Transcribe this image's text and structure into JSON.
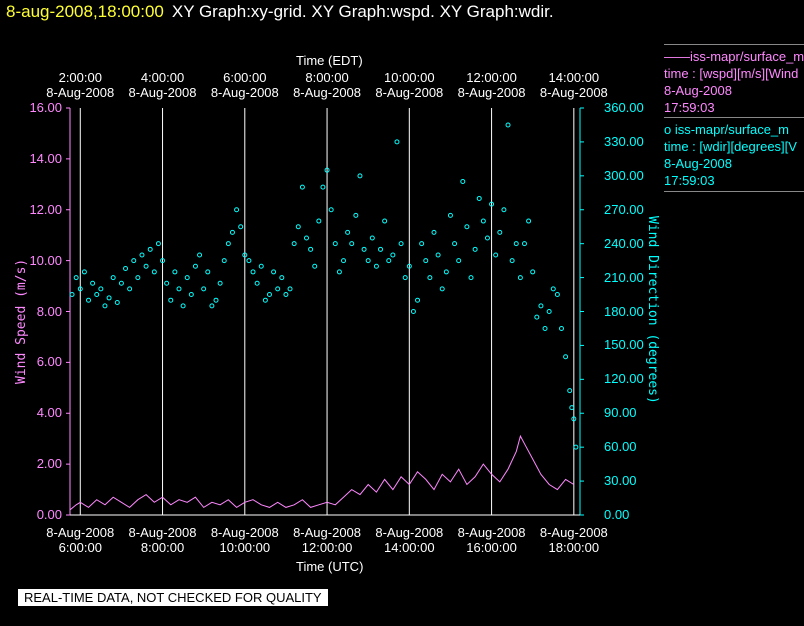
{
  "header": {
    "timestamp": "8-aug-2008,18:00:00",
    "graphs": "XY Graph:xy-grid.  XY Graph:wspd.  XY Graph:wdir."
  },
  "top_axis": {
    "title": "Time (EDT)",
    "ticks": [
      {
        "time": "2:00:00",
        "date": "8-Aug-2008"
      },
      {
        "time": "4:00:00",
        "date": "8-Aug-2008"
      },
      {
        "time": "6:00:00",
        "date": "8-Aug-2008"
      },
      {
        "time": "8:00:00",
        "date": "8-Aug-2008"
      },
      {
        "time": "10:00:00",
        "date": "8-Aug-2008"
      },
      {
        "time": "12:00:00",
        "date": "8-Aug-2008"
      },
      {
        "time": "14:00:00",
        "date": "8-Aug-2008"
      }
    ]
  },
  "bottom_axis": {
    "title": "Time (UTC)",
    "ticks": [
      {
        "date": "8-Aug-2008",
        "time": "6:00:00"
      },
      {
        "date": "8-Aug-2008",
        "time": "8:00:00"
      },
      {
        "date": "8-Aug-2008",
        "time": "10:00:00"
      },
      {
        "date": "8-Aug-2008",
        "time": "12:00:00"
      },
      {
        "date": "8-Aug-2008",
        "time": "14:00:00"
      },
      {
        "date": "8-Aug-2008",
        "time": "16:00:00"
      },
      {
        "date": "8-Aug-2008",
        "time": "18:00:00"
      }
    ]
  },
  "left_axis": {
    "title": "Wind Speed (m/s)",
    "ticks": [
      "0.00",
      "2.00",
      "4.00",
      "6.00",
      "8.00",
      "10.00",
      "12.00",
      "14.00",
      "16.00"
    ],
    "color": "#ff88ff"
  },
  "right_axis": {
    "title": "Wind Direction (degrees)",
    "ticks": [
      "0.00",
      "30.00",
      "60.00",
      "90.00",
      "120.00",
      "150.00",
      "180.00",
      "210.00",
      "240.00",
      "270.00",
      "300.00",
      "330.00",
      "360.00"
    ],
    "color": "#00ffff"
  },
  "legend": {
    "wspd": {
      "line1": "——iss-mapr/surface_m",
      "line2": "time : [wspd][m/s][Wind",
      "line3": "8-Aug-2008",
      "line4": "17:59:03"
    },
    "wdir": {
      "line1": "o  iss-mapr/surface_m",
      "line2": "time : [wdir][degrees][V",
      "line3": "8-Aug-2008",
      "line4": "17:59:03"
    }
  },
  "disclaimer": "REAL-TIME DATA, NOT CHECKED FOR QUALITY",
  "colors": {
    "wspd": "#ff88ff",
    "wdir": "#00ffff",
    "grid": "#ffffff",
    "timestamp": "#ffff33"
  },
  "chart_data": {
    "type": "line",
    "x_units": "hours UTC, 8-Aug-2008",
    "xlim": [
      5.75,
      18.15
    ],
    "series": [
      {
        "axis": "left",
        "style": "line",
        "ylim": [
          0,
          16
        ],
        "points": [
          [
            5.75,
            0.2
          ],
          [
            5.9,
            0.4
          ],
          [
            6.0,
            0.5
          ],
          [
            6.2,
            0.3
          ],
          [
            6.4,
            0.6
          ],
          [
            6.6,
            0.4
          ],
          [
            6.8,
            0.7
          ],
          [
            7.0,
            0.5
          ],
          [
            7.2,
            0.3
          ],
          [
            7.4,
            0.6
          ],
          [
            7.6,
            0.8
          ],
          [
            7.8,
            0.5
          ],
          [
            8.0,
            0.7
          ],
          [
            8.2,
            0.4
          ],
          [
            8.4,
            0.6
          ],
          [
            8.6,
            0.5
          ],
          [
            8.8,
            0.7
          ],
          [
            9.0,
            0.3
          ],
          [
            9.2,
            0.5
          ],
          [
            9.4,
            0.4
          ],
          [
            9.6,
            0.6
          ],
          [
            9.8,
            0.3
          ],
          [
            10.0,
            0.5
          ],
          [
            10.2,
            0.6
          ],
          [
            10.4,
            0.4
          ],
          [
            10.6,
            0.3
          ],
          [
            10.8,
            0.5
          ],
          [
            11.0,
            0.3
          ],
          [
            11.2,
            0.4
          ],
          [
            11.4,
            0.6
          ],
          [
            11.6,
            0.3
          ],
          [
            11.8,
            0.4
          ],
          [
            12.0,
            0.5
          ],
          [
            12.2,
            0.4
          ],
          [
            12.4,
            0.7
          ],
          [
            12.6,
            1.0
          ],
          [
            12.8,
            0.8
          ],
          [
            13.0,
            1.2
          ],
          [
            13.2,
            0.9
          ],
          [
            13.4,
            1.4
          ],
          [
            13.6,
            1.0
          ],
          [
            13.8,
            1.5
          ],
          [
            14.0,
            1.2
          ],
          [
            14.2,
            1.7
          ],
          [
            14.4,
            1.4
          ],
          [
            14.6,
            1.0
          ],
          [
            14.8,
            1.6
          ],
          [
            15.0,
            1.3
          ],
          [
            15.2,
            1.8
          ],
          [
            15.4,
            1.2
          ],
          [
            15.6,
            1.5
          ],
          [
            15.8,
            2.0
          ],
          [
            16.0,
            1.6
          ],
          [
            16.2,
            1.3
          ],
          [
            16.4,
            1.8
          ],
          [
            16.6,
            2.5
          ],
          [
            16.7,
            3.1
          ],
          [
            16.8,
            2.8
          ],
          [
            17.0,
            2.2
          ],
          [
            17.2,
            1.6
          ],
          [
            17.4,
            1.2
          ],
          [
            17.6,
            1.0
          ],
          [
            17.8,
            1.4
          ],
          [
            18.0,
            1.2
          ]
        ]
      },
      {
        "axis": "right",
        "style": "markers",
        "ylim": [
          0,
          360
        ],
        "points": [
          [
            5.8,
            195
          ],
          [
            5.9,
            210
          ],
          [
            6.0,
            200
          ],
          [
            6.1,
            215
          ],
          [
            6.2,
            190
          ],
          [
            6.3,
            205
          ],
          [
            6.4,
            195
          ],
          [
            6.5,
            200
          ],
          [
            6.6,
            185
          ],
          [
            6.7,
            192
          ],
          [
            6.8,
            210
          ],
          [
            6.9,
            188
          ],
          [
            7.0,
            205
          ],
          [
            7.1,
            218
          ],
          [
            7.2,
            200
          ],
          [
            7.3,
            225
          ],
          [
            7.4,
            210
          ],
          [
            7.5,
            230
          ],
          [
            7.6,
            220
          ],
          [
            7.7,
            235
          ],
          [
            7.8,
            215
          ],
          [
            7.9,
            240
          ],
          [
            8.0,
            225
          ],
          [
            8.1,
            205
          ],
          [
            8.2,
            190
          ],
          [
            8.3,
            215
          ],
          [
            8.4,
            200
          ],
          [
            8.5,
            185
          ],
          [
            8.6,
            210
          ],
          [
            8.7,
            195
          ],
          [
            8.8,
            220
          ],
          [
            8.9,
            230
          ],
          [
            9.0,
            200
          ],
          [
            9.1,
            215
          ],
          [
            9.2,
            185
          ],
          [
            9.3,
            190
          ],
          [
            9.4,
            205
          ],
          [
            9.5,
            225
          ],
          [
            9.6,
            240
          ],
          [
            9.7,
            250
          ],
          [
            9.8,
            270
          ],
          [
            9.9,
            255
          ],
          [
            10.0,
            230
          ],
          [
            10.1,
            225
          ],
          [
            10.2,
            215
          ],
          [
            10.3,
            205
          ],
          [
            10.4,
            220
          ],
          [
            10.5,
            190
          ],
          [
            10.6,
            195
          ],
          [
            10.7,
            215
          ],
          [
            10.8,
            200
          ],
          [
            10.9,
            210
          ],
          [
            11.0,
            195
          ],
          [
            11.1,
            200
          ],
          [
            11.2,
            240
          ],
          [
            11.3,
            255
          ],
          [
            11.4,
            290
          ],
          [
            11.5,
            245
          ],
          [
            11.6,
            235
          ],
          [
            11.7,
            220
          ],
          [
            11.8,
            260
          ],
          [
            11.9,
            290
          ],
          [
            12.0,
            305
          ],
          [
            12.1,
            270
          ],
          [
            12.2,
            240
          ],
          [
            12.3,
            215
          ],
          [
            12.4,
            225
          ],
          [
            12.5,
            250
          ],
          [
            12.6,
            240
          ],
          [
            12.7,
            265
          ],
          [
            12.8,
            300
          ],
          [
            12.9,
            235
          ],
          [
            13.0,
            225
          ],
          [
            13.1,
            245
          ],
          [
            13.2,
            220
          ],
          [
            13.3,
            235
          ],
          [
            13.4,
            260
          ],
          [
            13.5,
            225
          ],
          [
            13.6,
            230
          ],
          [
            13.7,
            330
          ],
          [
            13.8,
            240
          ],
          [
            13.9,
            210
          ],
          [
            14.0,
            220
          ],
          [
            14.1,
            180
          ],
          [
            14.2,
            190
          ],
          [
            14.3,
            240
          ],
          [
            14.4,
            225
          ],
          [
            14.5,
            210
          ],
          [
            14.6,
            250
          ],
          [
            14.7,
            230
          ],
          [
            14.8,
            200
          ],
          [
            14.9,
            215
          ],
          [
            15.0,
            265
          ],
          [
            15.1,
            240
          ],
          [
            15.2,
            225
          ],
          [
            15.3,
            295
          ],
          [
            15.4,
            255
          ],
          [
            15.5,
            210
          ],
          [
            15.6,
            235
          ],
          [
            15.7,
            280
          ],
          [
            15.8,
            260
          ],
          [
            15.9,
            245
          ],
          [
            16.0,
            275
          ],
          [
            16.1,
            230
          ],
          [
            16.2,
            250
          ],
          [
            16.3,
            270
          ],
          [
            16.4,
            345
          ],
          [
            16.5,
            225
          ],
          [
            16.6,
            240
          ],
          [
            16.7,
            210
          ],
          [
            16.8,
            240
          ],
          [
            16.9,
            260
          ],
          [
            17.0,
            215
          ],
          [
            17.1,
            175
          ],
          [
            17.2,
            185
          ],
          [
            17.3,
            165
          ],
          [
            17.4,
            180
          ],
          [
            17.5,
            200
          ],
          [
            17.6,
            195
          ],
          [
            17.7,
            165
          ],
          [
            17.8,
            140
          ],
          [
            17.9,
            110
          ],
          [
            17.95,
            95
          ],
          [
            18.0,
            85
          ],
          [
            18.05,
            60
          ]
        ]
      }
    ]
  }
}
